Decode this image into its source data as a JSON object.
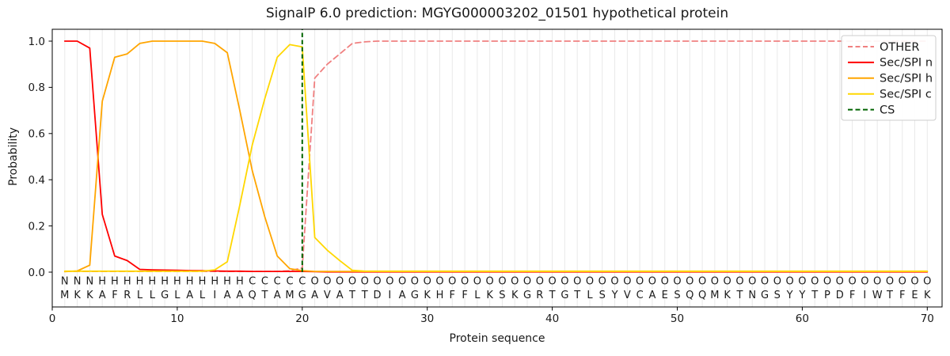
{
  "title": "SignalP 6.0 prediction: MGYG000003202_01501 hypothetical protein",
  "chart_data": {
    "type": "line",
    "title": "SignalP 6.0 prediction: MGYG000003202_01501 hypothetical protein",
    "xlabel": "Protein sequence",
    "ylabel": "Probability",
    "x_range": [
      1,
      70
    ],
    "xlim": [
      0,
      71.2
    ],
    "ylim": [
      -0.151,
      1.051
    ],
    "xticks": [
      0,
      10,
      20,
      30,
      40,
      50,
      60,
      70
    ],
    "yticks": [
      0.0,
      0.2,
      0.4,
      0.6,
      0.8,
      1.0
    ],
    "grid": "vertical-line-per-residue",
    "grid_color": "#e9e9e9",
    "legend_position": "upper-right",
    "series": [
      {
        "name": "OTHER",
        "color": "#f08080",
        "dash": [
          7,
          4.5
        ],
        "values": [
          0.003,
          0.003,
          0.003,
          0.003,
          0.003,
          0.003,
          0.003,
          0.003,
          0.003,
          0.003,
          0.003,
          0.003,
          0.003,
          0.003,
          0.003,
          0.003,
          0.003,
          0.003,
          0.006,
          0.018,
          0.84,
          0.9,
          0.945,
          0.99,
          0.997,
          1.0,
          1.0,
          1.0,
          1.0,
          1.0,
          1.0,
          1.0,
          1.0,
          1.0,
          1.0,
          1.0,
          1.0,
          1.0,
          1.0,
          1.0,
          1.0,
          1.0,
          1.0,
          1.0,
          1.0,
          1.0,
          1.0,
          1.0,
          1.0,
          1.0,
          1.0,
          1.0,
          1.0,
          1.0,
          1.0,
          1.0,
          1.0,
          1.0,
          1.0,
          1.0,
          1.0,
          1.0,
          1.0,
          1.0,
          1.0,
          1.0,
          1.0,
          1.0,
          1.0,
          1.0
        ]
      },
      {
        "name": "Sec/SPI n",
        "color": "#ff0000",
        "dash": null,
        "values": [
          1.0,
          1.0,
          0.97,
          0.25,
          0.07,
          0.05,
          0.012,
          0.01,
          0.009,
          0.008,
          0.007,
          0.006,
          0.005,
          0.004,
          0.004,
          0.003,
          0.003,
          0.003,
          0.003,
          0.003,
          0.002,
          0.001,
          0.001,
          0.001,
          0.001,
          0.001,
          0.001,
          0.001,
          0.001,
          0.001,
          0.001,
          0.001,
          0.001,
          0.001,
          0.001,
          0.001,
          0.001,
          0.001,
          0.001,
          0.001,
          0.001,
          0.001,
          0.001,
          0.001,
          0.001,
          0.001,
          0.001,
          0.001,
          0.001,
          0.001,
          0.001,
          0.001,
          0.001,
          0.001,
          0.001,
          0.001,
          0.001,
          0.001,
          0.001,
          0.001,
          0.001,
          0.001,
          0.001,
          0.001,
          0.001,
          0.001,
          0.001,
          0.001,
          0.001,
          0.001
        ]
      },
      {
        "name": "Sec/SPI h",
        "color": "#ffa500",
        "dash": null,
        "values": [
          0.002,
          0.005,
          0.03,
          0.74,
          0.93,
          0.945,
          0.99,
          1.0,
          1.0,
          1.0,
          1.0,
          1.0,
          0.99,
          0.95,
          0.7,
          0.44,
          0.24,
          0.07,
          0.015,
          0.006,
          0.003,
          0.003,
          0.003,
          0.003,
          0.003,
          0.003,
          0.003,
          0.003,
          0.003,
          0.003,
          0.003,
          0.003,
          0.003,
          0.003,
          0.003,
          0.003,
          0.003,
          0.003,
          0.003,
          0.003,
          0.003,
          0.003,
          0.003,
          0.003,
          0.003,
          0.003,
          0.003,
          0.003,
          0.003,
          0.003,
          0.003,
          0.003,
          0.003,
          0.003,
          0.003,
          0.003,
          0.003,
          0.003,
          0.003,
          0.003,
          0.003,
          0.003,
          0.003,
          0.003,
          0.003,
          0.003,
          0.003,
          0.003,
          0.003,
          0.003
        ]
      },
      {
        "name": "Sec/SPI c",
        "color": "#ffd700",
        "dash": null,
        "values": [
          0.004,
          0.004,
          0.004,
          0.004,
          0.004,
          0.004,
          0.004,
          0.004,
          0.004,
          0.004,
          0.004,
          0.004,
          0.01,
          0.045,
          0.29,
          0.55,
          0.75,
          0.93,
          0.985,
          0.975,
          0.15,
          0.095,
          0.05,
          0.008,
          0.004,
          0.004,
          0.004,
          0.004,
          0.004,
          0.004,
          0.004,
          0.004,
          0.004,
          0.004,
          0.004,
          0.004,
          0.004,
          0.004,
          0.004,
          0.004,
          0.004,
          0.004,
          0.004,
          0.004,
          0.004,
          0.004,
          0.004,
          0.004,
          0.004,
          0.004,
          0.004,
          0.004,
          0.004,
          0.004,
          0.004,
          0.004,
          0.004,
          0.004,
          0.004,
          0.004,
          0.004,
          0.004,
          0.004,
          0.004,
          0.004,
          0.004,
          0.004,
          0.004,
          0.004,
          0.004
        ]
      }
    ],
    "cs_marker": {
      "name": "CS",
      "position": 20,
      "color": "#006400",
      "dash": [
        5.5,
        3.5
      ]
    },
    "legend_entries": [
      "OTHER",
      "Sec/SPI n",
      "Sec/SPI h",
      "Sec/SPI c",
      "CS"
    ],
    "residue_labels": "NNNHHHHHHHHHHHHCCCCCOOOOOOOOOOOOOOOOOOOOOOOOOOOOOOOOOOOOOOOOOOOOOOOOOO",
    "residue_sequence": "MKKAFRLLGLALIAAQTAMGAVATTDIAGKHFFLKSKGRTGTLSYVCAESQQMKTNGSYYTPDFIWTFEK",
    "label_colors": {
      "N": "#ff0000",
      "H": "#ffa500",
      "C": "#ffd700",
      "O": "#8a8a8a"
    },
    "sequence_color": "#2b2b2b"
  }
}
